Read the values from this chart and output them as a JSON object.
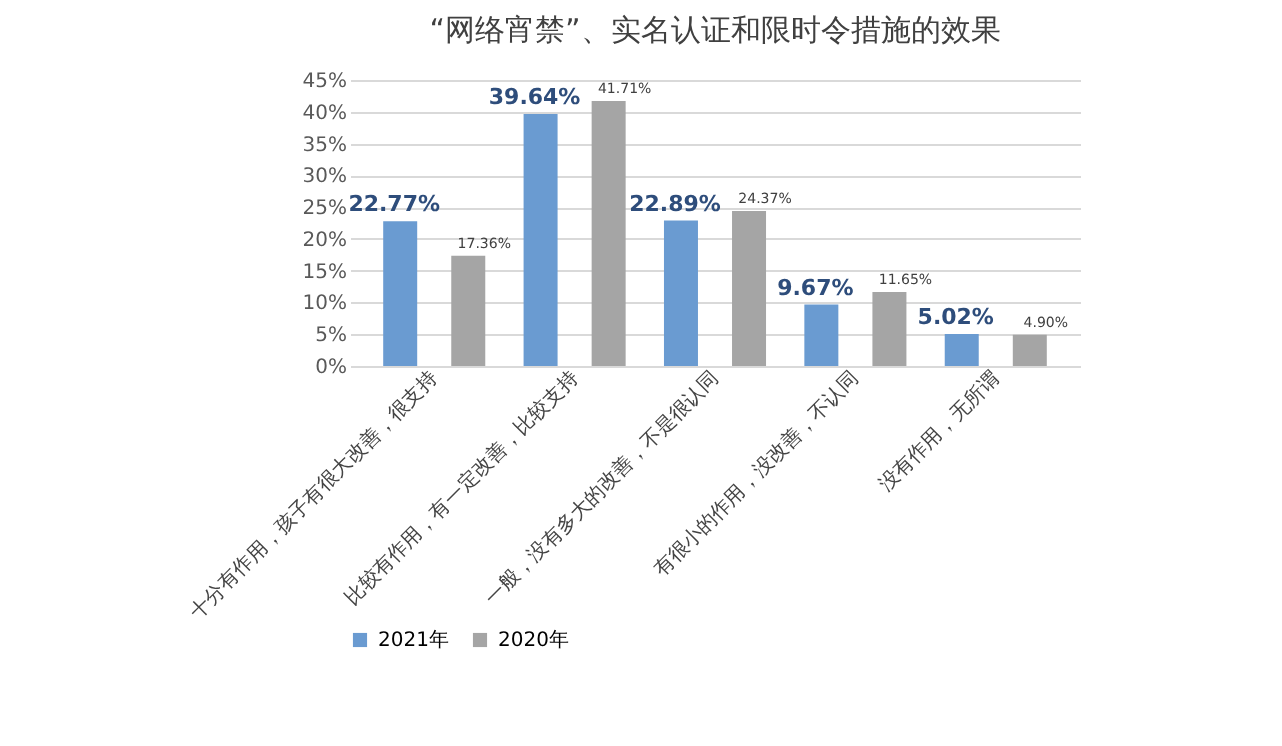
{
  "chart_data": {
    "type": "bar",
    "title": "“网络宵禁”、实名认证和限时令措施的效果",
    "categories": [
      "十分有作用，孩子有很大改善，很支持",
      "比较有作用，有一定改善，比较支持",
      "一般，没有多大的改善，不是很认同",
      "有很小的作用，没改善，不认同",
      "没有作用，无所谓"
    ],
    "series": [
      {
        "name": "2021年",
        "color": "#6a9bd1",
        "values": [
          22.77,
          39.64,
          22.89,
          9.67,
          5.02
        ],
        "value_labels": [
          "22.77%",
          "39.64%",
          "22.89%",
          "9.67%",
          "5.02%"
        ]
      },
      {
        "name": "2020年",
        "color": "#a5a5a5",
        "values": [
          17.36,
          41.71,
          24.37,
          11.65,
          4.9
        ],
        "value_labels": [
          "17.36%",
          "41.71%",
          "24.37%",
          "11.65%",
          "4.90%"
        ]
      }
    ],
    "ylim": [
      0,
      45
    ],
    "yticks": [
      {
        "value": 0,
        "label": "0%"
      },
      {
        "value": 5,
        "label": "5%"
      },
      {
        "value": 10,
        "label": "10%"
      },
      {
        "value": 15,
        "label": "15%"
      },
      {
        "value": 20,
        "label": "20%"
      },
      {
        "value": 25,
        "label": "25%"
      },
      {
        "value": 30,
        "label": "30%"
      },
      {
        "value": 35,
        "label": "35%"
      },
      {
        "value": 40,
        "label": "40%"
      },
      {
        "value": 45,
        "label": "45%"
      }
    ],
    "grid": "y",
    "legend": "bottom"
  }
}
